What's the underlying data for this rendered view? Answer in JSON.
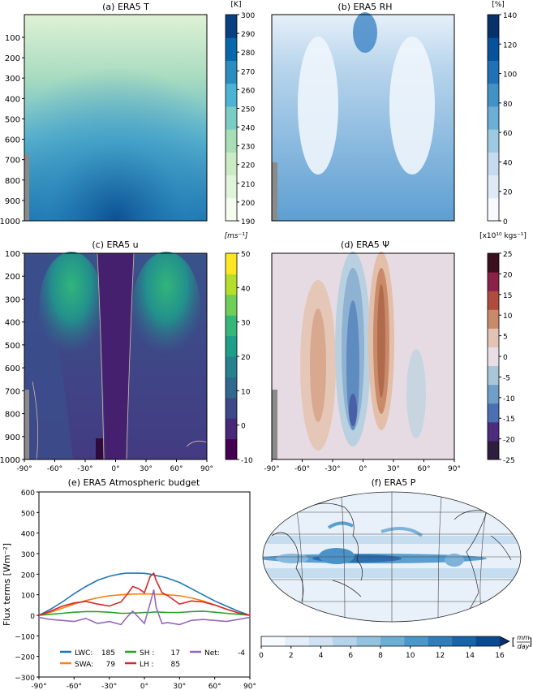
{
  "chart_data": [
    {
      "id": "a",
      "type": "heatmap",
      "title": "(a) ERA5 T",
      "yticks": [
        "100",
        "200",
        "300",
        "400",
        "500",
        "600",
        "700",
        "800",
        "900",
        "1000"
      ],
      "colorbar": {
        "unit": "[K]",
        "ticks": [
          "300",
          "290",
          "280",
          "270",
          "260",
          "250",
          "240",
          "230",
          "220",
          "210",
          "200",
          "190"
        ],
        "range": [
          190,
          300
        ],
        "colors": [
          "#f7fcf0",
          "#e0f3db",
          "#ccebc5",
          "#a8ddb5",
          "#7bccc4",
          "#4eb3d3",
          "#2b8cbe",
          "#0868ac",
          "#084081"
        ]
      }
    },
    {
      "id": "b",
      "type": "heatmap",
      "title": "(b) ERA5 RH",
      "colorbar": {
        "unit": "[%]",
        "ticks": [
          "140",
          "120",
          "100",
          "80",
          "60",
          "40",
          "20",
          "0"
        ],
        "range": [
          0,
          140
        ],
        "colors": [
          "#f7fbff",
          "#deebf7",
          "#c6dbef",
          "#9ecae1",
          "#6baed6",
          "#4292c6",
          "#2171b5",
          "#08519c",
          "#08306b"
        ]
      }
    },
    {
      "id": "c",
      "type": "heatmap",
      "title": "(c) ERA5 u",
      "yticks": [
        "100",
        "200",
        "300",
        "400",
        "500",
        "600",
        "700",
        "800",
        "900",
        "1000"
      ],
      "xticks": [
        "-90°",
        "-60°",
        "-30°",
        "0°",
        "30°",
        "60°",
        "90°"
      ],
      "colorbar": {
        "unit": "[ms⁻¹]",
        "ticks": [
          "50",
          "40",
          "30",
          "20",
          "10",
          "0",
          "-10"
        ],
        "range": [
          -10,
          50
        ],
        "colors": [
          "#440154",
          "#482878",
          "#3e4989",
          "#31688e",
          "#26828e",
          "#1f9e89",
          "#35b779",
          "#6ece58",
          "#b5de2b",
          "#fde725"
        ]
      }
    },
    {
      "id": "d",
      "type": "heatmap",
      "title": "(d) ERA5 Ψ",
      "xticks": [
        "-90°",
        "-60°",
        "-30°",
        "0°",
        "30°",
        "60°",
        "90°"
      ],
      "colorbar": {
        "unit": "[x10¹⁰ kgs⁻¹]",
        "ticks": [
          "25",
          "20",
          "15",
          "10",
          "5",
          "0",
          "-5",
          "-10",
          "-15",
          "-20",
          "-25"
        ],
        "range": [
          -25,
          25
        ],
        "colors": [
          "#2d1e3e",
          "#4b2c7f",
          "#4c6fb3",
          "#6f9fc9",
          "#a9c6d8",
          "#e8dfe6",
          "#e3c3b3",
          "#c98a6a",
          "#b04c3e",
          "#8a2248",
          "#3b0f1e"
        ]
      }
    },
    {
      "id": "e",
      "type": "line",
      "title": "(e) ERA5 Atmospheric budget",
      "ylabel": "Flux terms [Wm⁻²]",
      "ylim": [
        -300,
        600
      ],
      "yticks": [
        "600",
        "500",
        "400",
        "300",
        "200",
        "100",
        "0",
        "−100",
        "−200",
        "−300"
      ],
      "xticks": [
        "-90°",
        "-60°",
        "-30°",
        "0°",
        "30°",
        "60°",
        "90°"
      ],
      "x": [
        -90,
        -80,
        -70,
        -60,
        -50,
        -40,
        -30,
        -20,
        -15,
        -10,
        -5,
        0,
        5,
        8,
        10,
        15,
        20,
        30,
        40,
        50,
        60,
        70,
        80,
        90
      ],
      "series": [
        {
          "name": "LWC:",
          "value": "185",
          "color": "#1f77b4",
          "values": [
            0,
            30,
            65,
            105,
            140,
            170,
            190,
            202,
            205,
            205,
            205,
            204,
            200,
            196,
            193,
            188,
            180,
            160,
            130,
            100,
            70,
            45,
            20,
            0
          ]
        },
        {
          "name": "SWA:",
          "value": "79",
          "color": "#ff7f0e",
          "values": [
            0,
            15,
            35,
            55,
            72,
            85,
            95,
            100,
            102,
            103,
            104,
            104,
            104,
            103,
            103,
            102,
            100,
            95,
            85,
            70,
            50,
            30,
            12,
            0
          ]
        },
        {
          "name": "SH :",
          "value": "17",
          "color": "#2ca02c",
          "values": [
            0,
            5,
            10,
            15,
            18,
            18,
            15,
            10,
            10,
            12,
            12,
            14,
            14,
            16,
            16,
            15,
            14,
            14,
            18,
            20,
            15,
            10,
            5,
            0
          ]
        },
        {
          "name": "LH :",
          "value": "85",
          "color": "#d62728",
          "values": [
            0,
            20,
            45,
            60,
            68,
            55,
            45,
            65,
            100,
            140,
            130,
            110,
            190,
            205,
            170,
            110,
            95,
            55,
            70,
            65,
            50,
            30,
            12,
            0
          ]
        },
        {
          "name": "Net:",
          "value": "-4",
          "color": "#9467bd",
          "values": [
            -10,
            -20,
            -25,
            -30,
            -15,
            -40,
            -30,
            -45,
            -10,
            20,
            -10,
            -40,
            60,
            125,
            40,
            -40,
            -35,
            -45,
            -25,
            -20,
            -25,
            -30,
            -20,
            -10
          ]
        }
      ]
    },
    {
      "id": "f",
      "type": "heatmap",
      "title": "(f) ERA5 P",
      "colorbar": {
        "unit": "[mm/day]",
        "unit_num": "mm",
        "unit_den": "day",
        "ticks": [
          "0",
          "2",
          "4",
          "6",
          "8",
          "10",
          "12",
          "14",
          "16"
        ],
        "range": [
          0,
          16
        ],
        "colors": [
          "#f7fbff",
          "#e3eef9",
          "#cfe1f2",
          "#b5d4e9",
          "#93c3df",
          "#6daed5",
          "#4b97c9",
          "#2f7ebc",
          "#1864aa",
          "#0a4a90",
          "#08306b"
        ]
      }
    }
  ]
}
